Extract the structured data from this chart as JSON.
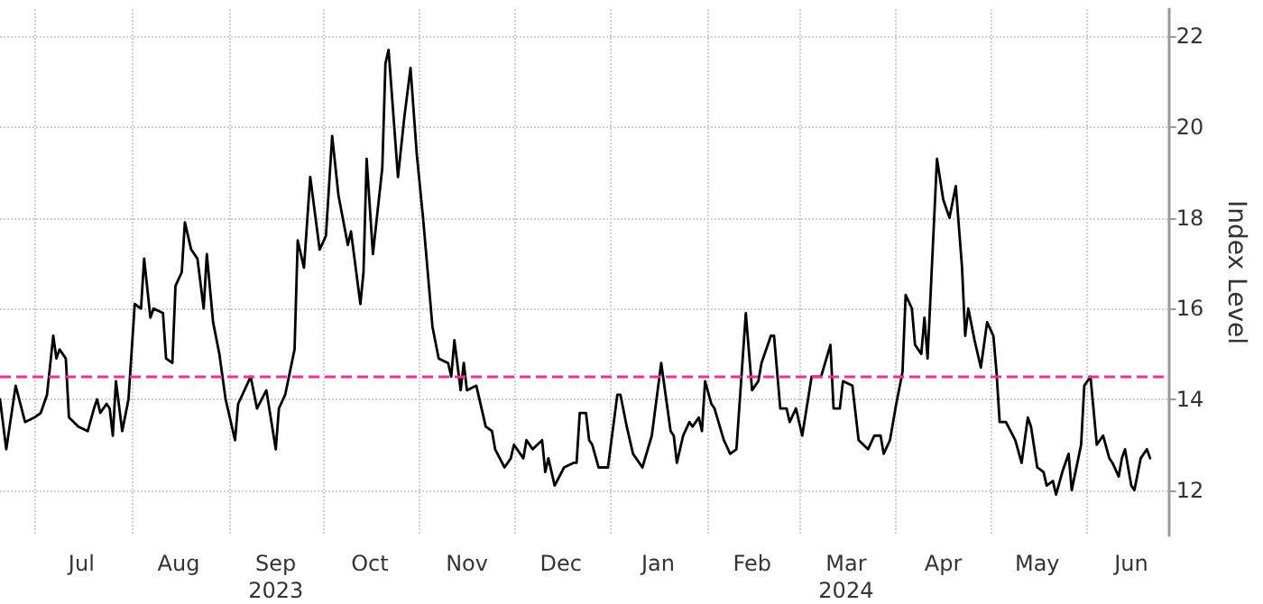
{
  "chart_data": {
    "type": "line",
    "ylabel": "Index Level",
    "xlim": [
      "2023-06-20",
      "2024-06-27"
    ],
    "ylim": [
      11,
      22.6
    ],
    "yticks": [
      12,
      14,
      16,
      18,
      20,
      22
    ],
    "xticks": [
      {
        "value": "2023-07-01",
        "label": null
      },
      {
        "value": "2023-07-16",
        "label": "Jul"
      },
      {
        "value": "2023-08-01",
        "label": null
      },
      {
        "value": "2023-08-16",
        "label": "Aug"
      },
      {
        "value": "2023-09-01",
        "label": null
      },
      {
        "value": "2023-09-16",
        "label": "Sep\n2023"
      },
      {
        "value": "2023-10-01",
        "label": null
      },
      {
        "value": "2023-10-16",
        "label": "Oct"
      },
      {
        "value": "2023-11-01",
        "label": null
      },
      {
        "value": "2023-11-16",
        "label": "Nov"
      },
      {
        "value": "2023-12-01",
        "label": null
      },
      {
        "value": "2023-12-16",
        "label": "Dec"
      },
      {
        "value": "2024-01-01",
        "label": null
      },
      {
        "value": "2024-01-16",
        "label": "Jan"
      },
      {
        "value": "2024-02-01",
        "label": null
      },
      {
        "value": "2024-02-15",
        "label": "Feb"
      },
      {
        "value": "2024-03-01",
        "label": null
      },
      {
        "value": "2024-03-16",
        "label": "Mar\n2024"
      },
      {
        "value": "2024-04-01",
        "label": null
      },
      {
        "value": "2024-04-16",
        "label": "Apr"
      },
      {
        "value": "2024-05-01",
        "label": null
      },
      {
        "value": "2024-05-16",
        "label": "May"
      },
      {
        "value": "2024-06-01",
        "label": null
      },
      {
        "value": "2024-06-15",
        "label": "Jun"
      }
    ],
    "grid": true,
    "marker": "none",
    "line_style": "solid",
    "ref_lines": [
      {
        "axis": "y",
        "value": 14.5,
        "color": "#f0338c",
        "line_style": "dashed"
      }
    ],
    "series": [
      {
        "color": "#000000",
        "x": [
          "2023-06-20",
          "2023-06-22",
          "2023-06-25",
          "2023-06-28",
          "2023-07-01",
          "2023-07-03",
          "2023-07-05",
          "2023-07-07",
          "2023-07-08",
          "2023-07-09",
          "2023-07-11",
          "2023-07-12",
          "2023-07-15",
          "2023-07-18",
          "2023-07-20",
          "2023-07-21",
          "2023-07-22",
          "2023-07-24",
          "2023-07-25",
          "2023-07-26",
          "2023-07-27",
          "2023-07-29",
          "2023-07-31",
          "2023-08-02",
          "2023-08-04",
          "2023-08-05",
          "2023-08-07",
          "2023-08-08",
          "2023-08-11",
          "2023-08-12",
          "2023-08-14",
          "2023-08-15",
          "2023-08-17",
          "2023-08-18",
          "2023-08-20",
          "2023-08-22",
          "2023-08-24",
          "2023-08-25",
          "2023-08-27",
          "2023-08-29",
          "2023-08-31",
          "2023-09-03",
          "2023-09-04",
          "2023-09-08",
          "2023-09-10",
          "2023-09-13",
          "2023-09-16",
          "2023-09-17",
          "2023-09-19",
          "2023-09-22",
          "2023-09-23",
          "2023-09-25",
          "2023-09-27",
          "2023-09-30",
          "2023-10-02",
          "2023-10-04",
          "2023-10-06",
          "2023-10-09",
          "2023-10-10",
          "2023-10-13",
          "2023-10-14",
          "2023-10-15",
          "2023-10-17",
          "2023-10-20",
          "2023-10-21",
          "2023-10-22",
          "2023-10-25",
          "2023-10-27",
          "2023-10-29",
          "2023-10-31",
          "2023-11-02",
          "2023-11-05",
          "2023-11-07",
          "2023-11-10",
          "2023-11-11",
          "2023-11-12",
          "2023-11-14",
          "2023-11-15",
          "2023-11-16",
          "2023-11-19",
          "2023-11-22",
          "2023-11-24",
          "2023-11-25",
          "2023-11-28",
          "2023-11-30",
          "2023-12-01",
          "2023-12-04",
          "2023-12-05",
          "2023-12-07",
          "2023-12-10",
          "2023-12-11",
          "2023-12-12",
          "2023-12-14",
          "2023-12-17",
          "2023-12-20",
          "2023-12-21",
          "2023-12-22",
          "2023-12-24",
          "2023-12-25",
          "2023-12-26",
          "2023-12-28",
          "2023-12-31",
          "2024-01-03",
          "2024-01-04",
          "2024-01-06",
          "2024-01-08",
          "2024-01-11",
          "2024-01-14",
          "2024-01-17",
          "2024-01-20",
          "2024-01-21",
          "2024-01-22",
          "2024-01-24",
          "2024-01-26",
          "2024-01-27",
          "2024-01-29",
          "2024-01-30",
          "2024-01-31",
          "2024-02-02",
          "2024-02-03",
          "2024-02-06",
          "2024-02-08",
          "2024-02-10",
          "2024-02-13",
          "2024-02-15",
          "2024-02-17",
          "2024-02-18",
          "2024-02-21",
          "2024-02-22",
          "2024-02-24",
          "2024-02-26",
          "2024-02-27",
          "2024-02-29",
          "2024-03-02",
          "2024-03-05",
          "2024-03-08",
          "2024-03-11",
          "2024-03-12",
          "2024-03-14",
          "2024-03-15",
          "2024-03-18",
          "2024-03-20",
          "2024-03-23",
          "2024-03-25",
          "2024-03-27",
          "2024-03-28",
          "2024-03-30",
          "2024-04-01",
          "2024-04-03",
          "2024-04-04",
          "2024-04-06",
          "2024-04-07",
          "2024-04-09",
          "2024-04-10",
          "2024-04-11",
          "2024-04-14",
          "2024-04-16",
          "2024-04-18",
          "2024-04-20",
          "2024-04-22",
          "2024-04-23",
          "2024-04-24",
          "2024-04-26",
          "2024-04-28",
          "2024-04-30",
          "2024-05-02",
          "2024-05-03",
          "2024-05-04",
          "2024-05-06",
          "2024-05-09",
          "2024-05-11",
          "2024-05-13",
          "2024-05-14",
          "2024-05-16",
          "2024-05-18",
          "2024-05-19",
          "2024-05-21",
          "2024-05-22",
          "2024-05-24",
          "2024-05-26",
          "2024-05-27",
          "2024-05-30",
          "2024-05-31",
          "2024-06-02",
          "2024-06-04",
          "2024-06-06",
          "2024-06-08",
          "2024-06-09",
          "2024-06-11",
          "2024-06-12",
          "2024-06-13",
          "2024-06-15",
          "2024-06-16",
          "2024-06-18",
          "2024-06-20",
          "2024-06-21"
        ],
        "values": [
          14.0,
          12.9,
          14.3,
          13.5,
          13.6,
          13.7,
          14.1,
          15.4,
          14.9,
          15.1,
          14.9,
          13.6,
          13.4,
          13.3,
          13.8,
          14.0,
          13.7,
          13.9,
          13.8,
          13.2,
          14.4,
          13.3,
          14.0,
          16.1,
          16.0,
          17.1,
          15.8,
          16.0,
          15.9,
          14.9,
          14.8,
          16.5,
          16.8,
          17.9,
          17.3,
          17.1,
          16.0,
          17.2,
          15.7,
          15.0,
          14.0,
          13.1,
          13.9,
          14.5,
          13.8,
          14.2,
          12.9,
          13.8,
          14.1,
          15.1,
          17.5,
          16.9,
          18.9,
          17.3,
          17.6,
          19.8,
          18.5,
          17.4,
          17.7,
          16.1,
          16.8,
          19.3,
          17.2,
          19.1,
          21.4,
          21.7,
          18.9,
          20.2,
          21.3,
          19.4,
          18.0,
          15.6,
          14.9,
          14.8,
          14.5,
          15.3,
          14.2,
          14.8,
          14.2,
          14.3,
          13.4,
          13.3,
          12.9,
          12.5,
          12.7,
          13.0,
          12.7,
          13.1,
          12.9,
          13.1,
          12.4,
          12.7,
          12.1,
          12.5,
          12.6,
          12.6,
          13.7,
          13.7,
          13.1,
          13.0,
          12.5,
          12.5,
          14.1,
          14.1,
          13.4,
          12.8,
          12.5,
          13.2,
          14.8,
          13.3,
          13.2,
          12.6,
          13.2,
          13.5,
          13.4,
          13.6,
          13.3,
          14.4,
          13.9,
          13.8,
          13.1,
          12.8,
          12.9,
          15.9,
          14.2,
          14.4,
          14.8,
          15.4,
          15.4,
          13.8,
          13.8,
          13.5,
          13.8,
          13.2,
          14.5,
          14.5,
          15.2,
          13.8,
          13.8,
          14.4,
          14.3,
          13.1,
          12.9,
          13.2,
          13.2,
          12.8,
          13.1,
          13.9,
          14.6,
          16.3,
          16.0,
          15.2,
          15.0,
          15.8,
          14.9,
          19.3,
          18.4,
          18.0,
          18.7,
          16.9,
          15.4,
          16.0,
          15.3,
          14.7,
          15.7,
          15.4,
          14.6,
          13.5,
          13.5,
          13.1,
          12.6,
          13.6,
          13.4,
          12.5,
          12.4,
          12.1,
          12.2,
          11.9,
          12.4,
          12.8,
          12.0,
          13.0,
          14.3,
          14.5,
          13.0,
          13.2,
          12.7,
          12.6,
          12.3,
          12.7,
          12.9,
          12.1,
          12.0,
          12.7,
          12.9,
          12.7
        ]
      }
    ]
  }
}
